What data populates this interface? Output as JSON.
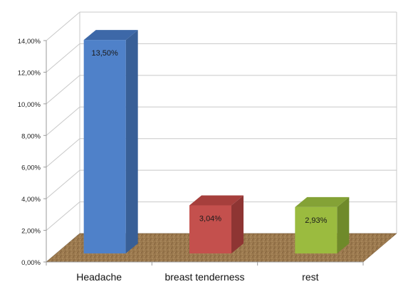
{
  "chart_data": {
    "type": "bar",
    "title": "",
    "xlabel": "",
    "ylabel": "",
    "categories": [
      "Headache",
      "breast tenderness",
      "rest"
    ],
    "values": [
      13.5,
      3.04,
      2.93
    ],
    "data_labels": [
      "13,50%",
      "3,04%",
      "2,93%"
    ],
    "y_tick_labels": [
      "0,00%",
      "2,00%",
      "4,00%",
      "6,00%",
      "8,00%",
      "10,00%",
      "12,00%",
      "14,00%"
    ],
    "ylim": [
      0,
      14
    ],
    "grid": true,
    "legend": "none",
    "style": "3d-column",
    "bar_colors": [
      {
        "front": "#4f81c9",
        "side": "#385f97",
        "top": "#3d68a8"
      },
      {
        "front": "#c4504d",
        "side": "#8e3533",
        "top": "#a63f3c"
      },
      {
        "front": "#9bbb3f",
        "side": "#6f8a2a",
        "top": "#84a236"
      }
    ],
    "floor_color": "#9c7a4f",
    "gridline_color": "#c8c8c8"
  }
}
